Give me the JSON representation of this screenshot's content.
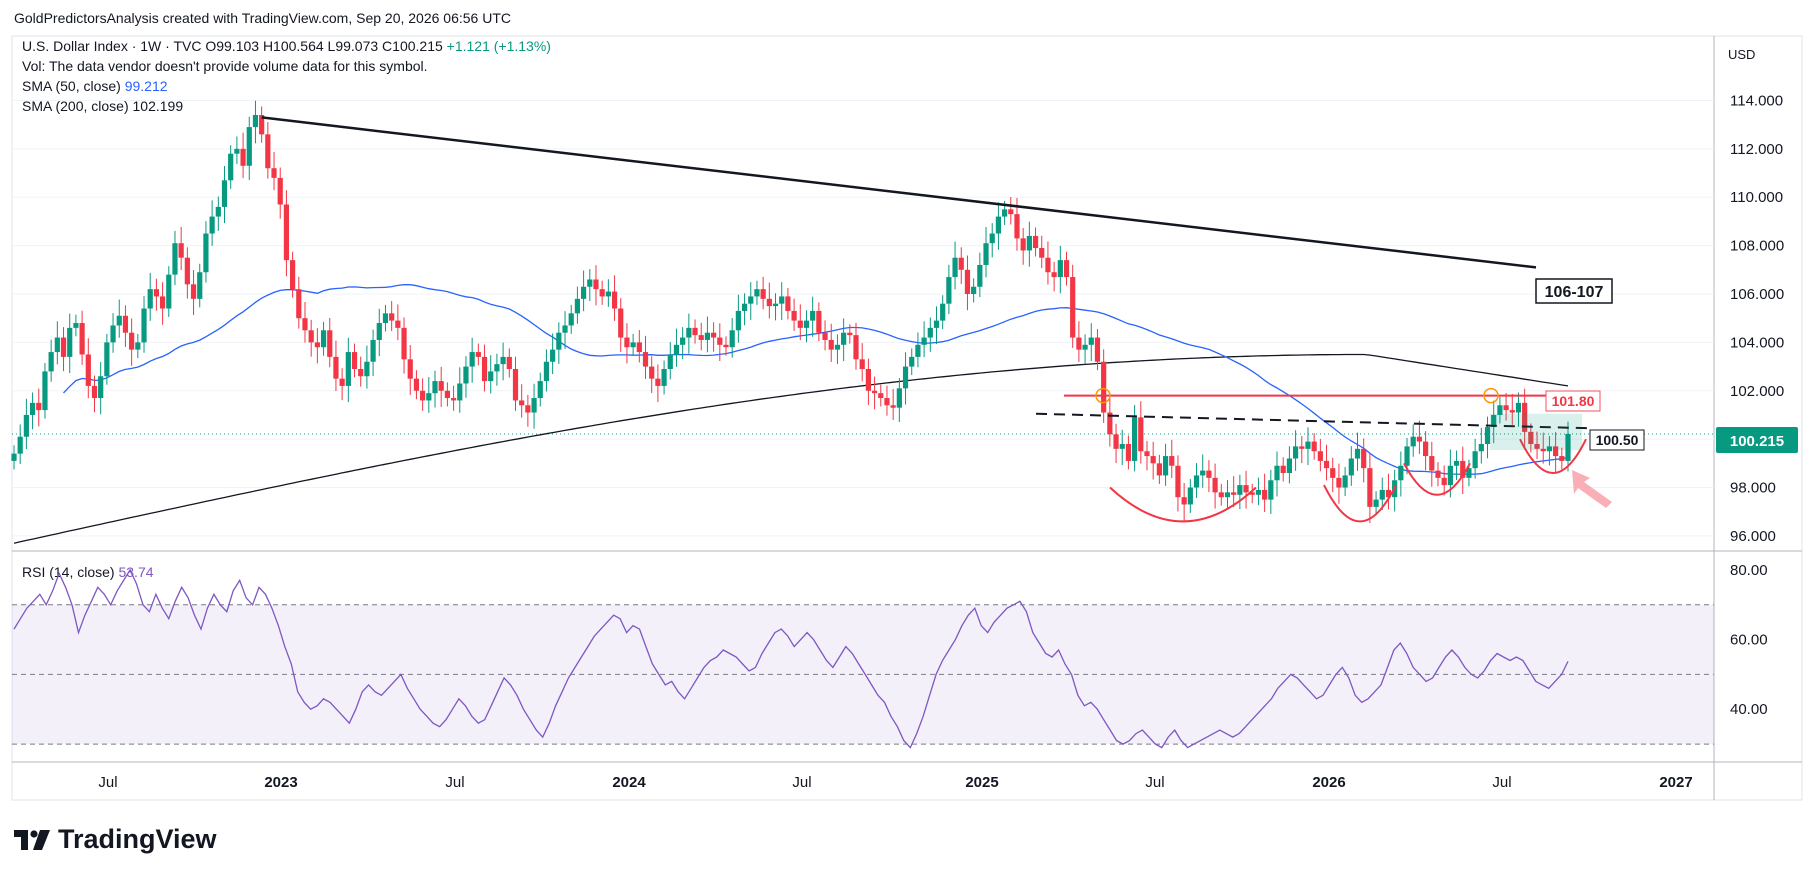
{
  "header": {
    "text": "GoldPredictorsAnalysis created with TradingView.com, Sep 20, 2026 06:56 UTC"
  },
  "legend": {
    "symbol": "U.S. Dollar Index · 1W · TVC",
    "ohlc": "O99.103 H100.564 L99.073 C100.215",
    "change": "+1.121 (+1.13%)",
    "vol": "Vol: The data vendor doesn't provide volume data for this symbol.",
    "sma50_label": "SMA (50, close)",
    "sma50_value": "99.212",
    "sma200_label": "SMA (200, close)",
    "sma200_value": "102.199",
    "rsi_label": "RSI (14, close)",
    "rsi_value": "53.74"
  },
  "axis": {
    "currency": "USD"
  },
  "annotations": {
    "trendline_label": "106-107",
    "resistance_label": "101.80",
    "neckline_label": "100.50",
    "last_price": "100.215"
  },
  "brand": {
    "name": "TradingView"
  },
  "colors": {
    "up": "#089981",
    "down": "#f23645",
    "sma50": "#2962ff",
    "sma200": "#131722",
    "rsi": "#7e57c2"
  },
  "chart_data": [
    {
      "type": "candlestick",
      "title": "U.S. Dollar Index · 1W · TVC",
      "ylim": [
        95.5,
        116.5
      ],
      "y_ticks": [
        "114.000",
        "112.000",
        "110.000",
        "108.000",
        "106.000",
        "104.000",
        "102.000",
        "100.000",
        "98.000",
        "96.000"
      ],
      "x_ticks": [
        "Jul",
        "2023",
        "Jul",
        "2024",
        "Jul",
        "2025",
        "Jul",
        "2026",
        "Jul",
        "2027"
      ],
      "close_series": [
        99.4,
        100.1,
        101.0,
        101.5,
        101.2,
        102.8,
        103.6,
        104.2,
        103.4,
        104.6,
        104.8,
        103.5,
        102.2,
        101.7,
        102.6,
        104.0,
        104.7,
        105.1,
        104.4,
        103.7,
        104.0,
        105.4,
        106.2,
        105.9,
        105.4,
        106.8,
        108.1,
        107.5,
        106.4,
        105.8,
        106.9,
        108.5,
        109.2,
        109.6,
        110.7,
        111.8,
        112.0,
        111.3,
        112.9,
        113.4,
        112.6,
        111.2,
        110.8,
        109.7,
        107.4,
        106.2,
        105.0,
        104.5,
        104.0,
        103.8,
        104.5,
        103.4,
        102.5,
        102.2,
        103.6,
        102.9,
        102.6,
        103.2,
        104.1,
        104.8,
        105.2,
        104.9,
        104.6,
        103.3,
        102.5,
        102.0,
        101.6,
        101.9,
        102.4,
        102.0,
        101.7,
        101.6,
        102.3,
        103.0,
        103.6,
        103.4,
        102.4,
        102.8,
        103.1,
        103.4,
        102.9,
        101.6,
        101.4,
        101.1,
        101.7,
        102.4,
        103.2,
        103.7,
        104.4,
        104.7,
        105.2,
        105.8,
        106.3,
        106.6,
        106.2,
        105.9,
        106.1,
        105.4,
        104.2,
        103.8,
        104.0,
        103.6,
        103.0,
        102.5,
        102.2,
        102.9,
        103.5,
        103.9,
        104.2,
        104.6,
        104.3,
        104.1,
        104.4,
        104.2,
        103.9,
        103.8,
        104.5,
        105.3,
        105.6,
        105.9,
        106.2,
        105.8,
        105.5,
        105.6,
        105.9,
        105.3,
        104.9,
        104.6,
        104.9,
        105.3,
        104.4,
        104.1,
        103.7,
        103.9,
        104.4,
        104.3,
        103.3,
        102.9,
        102.0,
        101.9,
        101.7,
        101.4,
        101.3,
        102.1,
        103.0,
        103.4,
        103.9,
        104.2,
        104.6,
        104.9,
        105.6,
        106.7,
        107.5,
        107.0,
        106.0,
        106.3,
        107.2,
        108.1,
        108.5,
        109.2,
        109.5,
        109.3,
        108.3,
        107.8,
        108.4,
        107.9,
        107.5,
        106.9,
        106.7,
        107.4,
        106.7,
        104.2,
        103.7,
        103.9,
        104.2,
        103.2,
        101.1,
        100.2,
        99.6,
        99.8,
        99.1,
        100.9,
        99.5,
        99.3,
        99.0,
        98.5,
        99.3,
        98.9,
        97.6,
        97.3,
        98.0,
        98.5,
        98.7,
        98.4,
        97.8,
        97.6,
        97.8,
        97.7,
        98.1,
        97.8,
        97.7,
        97.9,
        97.5,
        98.3,
        98.9,
        98.6,
        99.2,
        99.7,
        99.6,
        99.9,
        99.5,
        99.1,
        98.8,
        98.4,
        98.0,
        98.5,
        99.2,
        99.6,
        98.8,
        97.2,
        97.5,
        97.9,
        97.6,
        98.3,
        98.9,
        99.7,
        100.1,
        99.9,
        99.3,
        98.7,
        98.4,
        98.1,
        98.9,
        99.1,
        98.4,
        98.8,
        99.5,
        99.8,
        100.5,
        101.0,
        101.4,
        101.2,
        101.1,
        101.5,
        100.3,
        99.8,
        99.6,
        99.5,
        99.7,
        99.3,
        99.1,
        100.215
      ],
      "sma50_range": [
        95.8,
        105.9
      ],
      "sma200_range": [
        95.7,
        103.5
      ],
      "trendline": {
        "from": 113.3,
        "to": 107.1,
        "label": "106-107"
      },
      "resistance": 101.8,
      "neckline": 100.5
    },
    {
      "type": "line",
      "title": "RSI (14, close)",
      "ylim": [
        26,
        84
      ],
      "y_ticks": [
        "80.00",
        "60.00",
        "40.00"
      ],
      "bands": [
        70,
        50,
        30
      ],
      "values": [
        63,
        66,
        69,
        71,
        73,
        70,
        74,
        79,
        75,
        70,
        62,
        67,
        71,
        75,
        73,
        70,
        74,
        77,
        80,
        76,
        70,
        68,
        73,
        69,
        66,
        71,
        75,
        72,
        67,
        63,
        69,
        73,
        70,
        68,
        74,
        77,
        72,
        70,
        75,
        73,
        69,
        64,
        58,
        53,
        45,
        42,
        40,
        41,
        43,
        42,
        40,
        38,
        36,
        40,
        45,
        47,
        45,
        44,
        46,
        48,
        50,
        46,
        43,
        40,
        38,
        36,
        35,
        37,
        40,
        43,
        41,
        38,
        36,
        37,
        41,
        45,
        49,
        47,
        44,
        40,
        37,
        34,
        32,
        36,
        41,
        45,
        49,
        52,
        55,
        58,
        61,
        63,
        65,
        67,
        66,
        62,
        64,
        63,
        58,
        53,
        50,
        47,
        48,
        45,
        43,
        46,
        49,
        52,
        54,
        55,
        57,
        56,
        55,
        53,
        51,
        52,
        56,
        59,
        62,
        63,
        61,
        58,
        60,
        62,
        60,
        57,
        54,
        52,
        55,
        58,
        56,
        53,
        50,
        47,
        44,
        42,
        38,
        35,
        31,
        29,
        33,
        38,
        44,
        50,
        54,
        57,
        60,
        64,
        67,
        69,
        64,
        62,
        65,
        67,
        69,
        70,
        71,
        68,
        62,
        59,
        56,
        55,
        57,
        53,
        50,
        44,
        41,
        42,
        40,
        37,
        34,
        31,
        30,
        31,
        33,
        34,
        32,
        30,
        29,
        32,
        34,
        31,
        29,
        30,
        31,
        32,
        33,
        34,
        33,
        32,
        33,
        35,
        37,
        39,
        41,
        43,
        46,
        48,
        50,
        49,
        47,
        45,
        43,
        44,
        47,
        50,
        52,
        49,
        44,
        42,
        43,
        45,
        47,
        52,
        57,
        59,
        56,
        52,
        50,
        48,
        49,
        52,
        55,
        57,
        55,
        52,
        50,
        49,
        51,
        54,
        56,
        55,
        54,
        55,
        54,
        51,
        48,
        47,
        46,
        48,
        50,
        53.74
      ]
    }
  ]
}
